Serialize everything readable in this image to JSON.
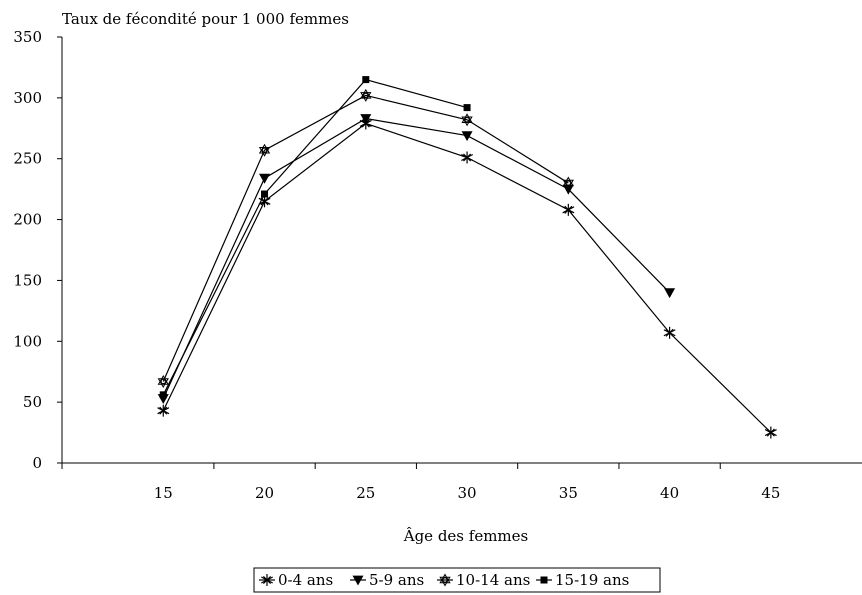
{
  "chart_data": {
    "type": "line",
    "ylabel": "Taux de fécondité pour 1 000 femmes",
    "xlabel": "Âge des femmes",
    "x": [
      15,
      20,
      25,
      30,
      35,
      40,
      45
    ],
    "xlim": [
      10,
      49.5
    ],
    "ylim": [
      0,
      350
    ],
    "yticks": [
      0,
      50,
      100,
      150,
      200,
      250,
      300,
      350
    ],
    "xticks": [
      15,
      20,
      25,
      30,
      35,
      40,
      45
    ],
    "grid": false,
    "legend_position": "bottom",
    "series": [
      {
        "name": "0-4 ans",
        "marker": "asterisk",
        "values": [
          43,
          215,
          279,
          251,
          208,
          107,
          25
        ]
      },
      {
        "name": "5-9 ans",
        "marker": "triangle-down",
        "values": [
          53,
          234,
          283,
          269,
          225,
          140,
          null
        ]
      },
      {
        "name": "10-14 ans",
        "marker": "star-outline",
        "values": [
          67,
          257,
          302,
          282,
          230,
          null,
          null
        ]
      },
      {
        "name": "15-19 ans",
        "marker": "square",
        "values": [
          56,
          221,
          315,
          292,
          null,
          null,
          null
        ]
      }
    ],
    "line_color": "#000000"
  }
}
